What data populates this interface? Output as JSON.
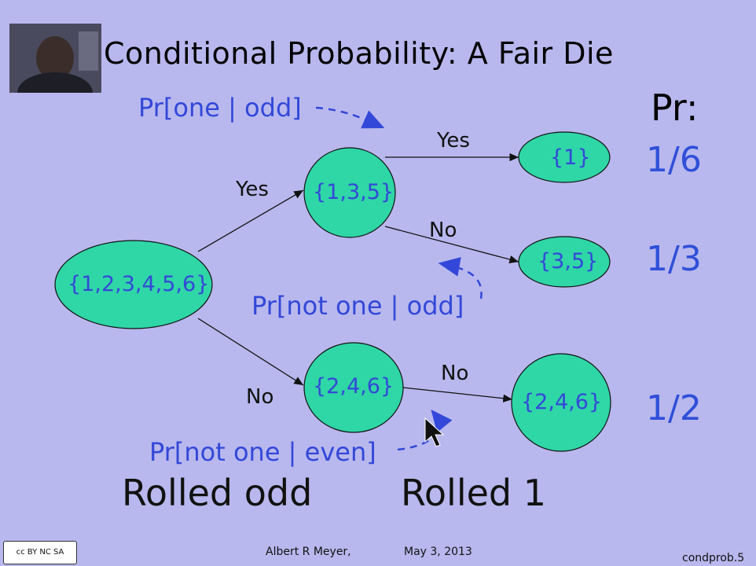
{
  "slide": {
    "title": "Conditional Probability: A Fair Die",
    "pr_header": "Pr:",
    "nodes": {
      "root": "{1,2,3,4,5,6}",
      "odd": "{1,3,5}",
      "even": "{2,4,6}",
      "one": "{1}",
      "three_five": "{3,5}",
      "even_leaf": "{2,4,6}"
    },
    "edges": {
      "root_odd": "Yes",
      "root_even": "No",
      "odd_one": "Yes",
      "odd_35": "No",
      "even_leaf": "No"
    },
    "annotations": {
      "pr_one_odd": "Pr[one | odd]",
      "pr_not_one_odd": "Pr[not one | odd]",
      "pr_not_one_even": "Pr[not one | even]"
    },
    "probabilities": [
      "1/6",
      "1/3",
      "1/2"
    ],
    "bottom_labels": {
      "rolled_odd": "Rolled odd",
      "rolled_one": "Rolled 1"
    },
    "footer": {
      "author": "Albert R Meyer,",
      "date": "May 3, 2013",
      "slide_id": "condprob.5",
      "license": "cc BY NC SA"
    },
    "colors": {
      "background": "#b8b8ee",
      "node_fill": "#2fd6a6",
      "annotation_blue": "#3348d8"
    }
  }
}
